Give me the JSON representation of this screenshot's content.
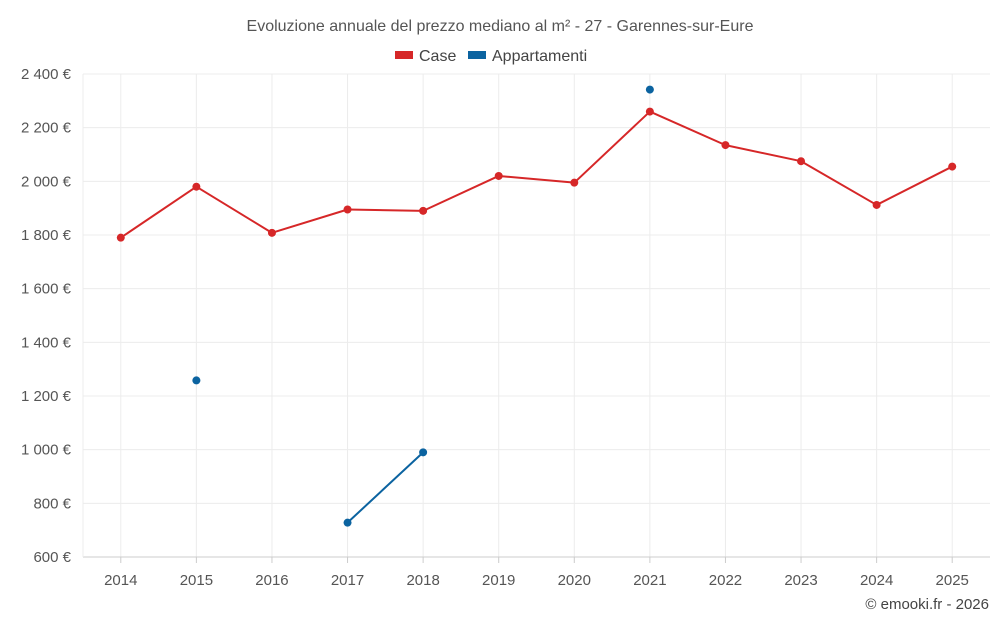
{
  "chart_data": {
    "type": "line",
    "title": "Evoluzione annuale del prezzo mediano al m² - 27 - Garennes-sur-Eure",
    "categories": [
      "2014",
      "2015",
      "2016",
      "2017",
      "2018",
      "2019",
      "2020",
      "2021",
      "2022",
      "2023",
      "2024",
      "2025"
    ],
    "ylim": [
      600,
      2400
    ],
    "yticks": [
      600,
      800,
      1000,
      1200,
      1400,
      1600,
      1800,
      2000,
      2200,
      2400
    ],
    "ytick_labels": [
      "600 €",
      "800 €",
      "1 000 €",
      "1 200 €",
      "1 400 €",
      "1 600 €",
      "1 800 €",
      "2 000 €",
      "2 200 €",
      "2 400 €"
    ],
    "grid": true,
    "legend_position": "top-center",
    "series": [
      {
        "name": "Case",
        "color": "#d62728",
        "values": [
          1790,
          1980,
          1808,
          1895,
          1890,
          2020,
          1995,
          2260,
          2135,
          2075,
          1912,
          2055
        ]
      },
      {
        "name": "Appartamenti",
        "color": "#0b63a0",
        "values": [
          null,
          1258,
          null,
          728,
          990,
          null,
          null,
          2342,
          null,
          null,
          null,
          null
        ]
      }
    ]
  },
  "credit": "© emooki.fr - 2026"
}
